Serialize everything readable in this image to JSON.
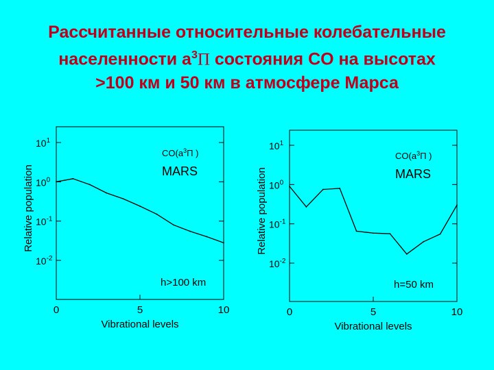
{
  "slide": {
    "title_line1": "Рассчитанные относительные колебательные",
    "title_line2_pre": "населенности a",
    "title_line2_sup": "3",
    "title_line2_pi": "Π",
    "title_line2_post": " состояния CO на высотах",
    "title_line3": ">100 км и 50 км в атмосфере Марса"
  },
  "chart_data": [
    {
      "type": "line",
      "panel": "left",
      "ylabel": "Relative  population",
      "xlabel": "Vibrational  levels",
      "yscale": "log",
      "xlim": [
        0,
        10
      ],
      "ylim": [
        0.01,
        10
      ],
      "xticks": [
        "0",
        "5",
        "10"
      ],
      "yticks": [
        {
          "base": "10",
          "exp": "1"
        },
        {
          "base": "10",
          "exp": "0"
        },
        {
          "base": "10",
          "exp": "-1"
        },
        {
          "base": "10",
          "exp": "-2"
        }
      ],
      "annotation_species": "CO(a",
      "annotation_species_sup": "3",
      "annotation_species_tail": "Π )",
      "annotation_planet": "MARS",
      "annotation_altitude": "h>100 km",
      "series": [
        {
          "x": [
            0,
            1,
            2,
            3,
            4,
            5,
            6,
            7,
            8,
            9,
            10
          ],
          "y": [
            1.0,
            1.2,
            0.85,
            0.52,
            0.37,
            0.24,
            0.15,
            0.08,
            0.055,
            0.04,
            0.028
          ]
        }
      ]
    },
    {
      "type": "line",
      "panel": "right",
      "ylabel": "Relative  population",
      "xlabel": "Vibrational  levels",
      "yscale": "log",
      "xlim": [
        0,
        10
      ],
      "ylim": [
        0.01,
        10
      ],
      "xticks": [
        "0",
        "5",
        "10"
      ],
      "yticks": [
        {
          "base": "10",
          "exp": "1"
        },
        {
          "base": "10",
          "exp": "0"
        },
        {
          "base": "10",
          "exp": "-1"
        },
        {
          "base": "10",
          "exp": "-2"
        }
      ],
      "annotation_species": "CO(a",
      "annotation_species_sup": "3",
      "annotation_species_tail": "Π )",
      "annotation_planet": "MARS",
      "annotation_altitude": "h=50 km",
      "series": [
        {
          "x": [
            0,
            1,
            2,
            3,
            4,
            5,
            6,
            7,
            8,
            9,
            10
          ],
          "y": [
            0.9,
            0.27,
            0.75,
            0.8,
            0.065,
            0.058,
            0.056,
            0.017,
            0.035,
            0.055,
            0.3
          ]
        }
      ]
    }
  ]
}
